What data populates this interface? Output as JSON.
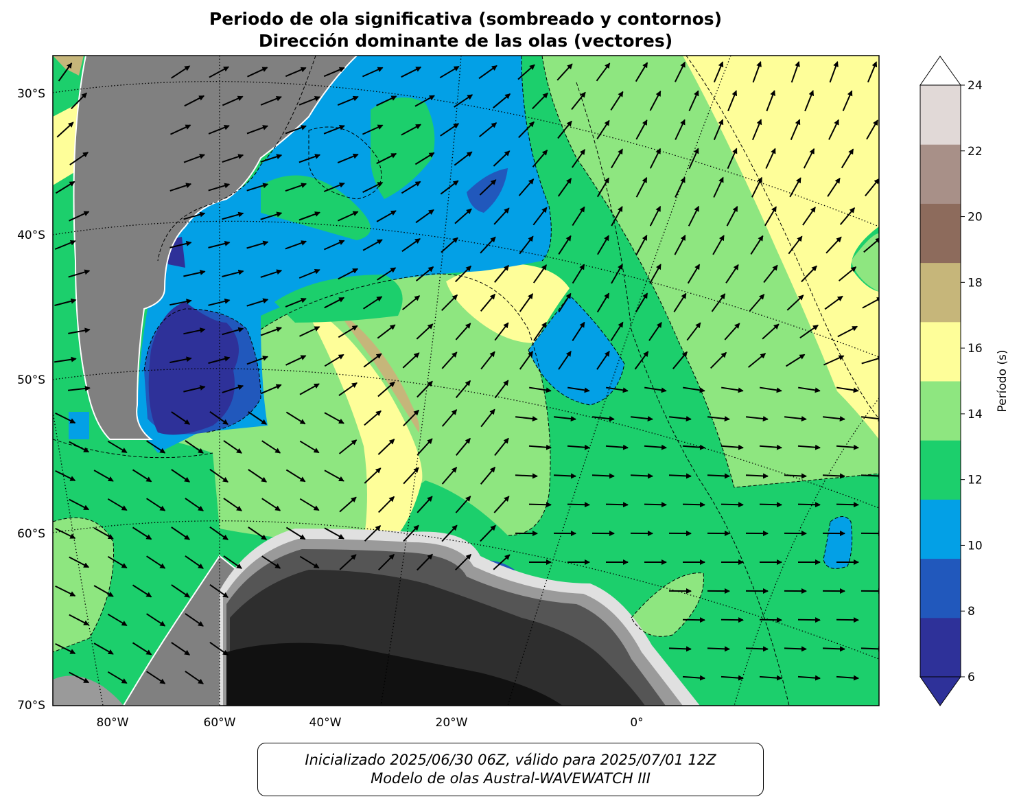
{
  "title": {
    "line1": "Periodo de ola significativa (sombreado y contornos)",
    "line2": "Dirección dominante de las olas (vectores)"
  },
  "map": {
    "lat_labels": [
      "30°S",
      "40°S",
      "50°S",
      "60°S",
      "70°S"
    ],
    "lon_labels": [
      "80°W",
      "60°W",
      "40°W",
      "20°W",
      "0°"
    ],
    "land_color": "#808080",
    "antarctic_ice_colors": [
      "#111111",
      "#2e2e2e",
      "#555555",
      "#9a9a9a",
      "#e0e0e0"
    ]
  },
  "colorbar": {
    "label": "Período (s)",
    "ticks": [
      "6",
      "8",
      "10",
      "12",
      "14",
      "16",
      "18",
      "20",
      "22",
      "24"
    ],
    "colors": [
      "#2e3199",
      "#2158bc",
      "#03a0e6",
      "#1ccf6c",
      "#8ee680",
      "#fefe99",
      "#c6b67a",
      "#8d6b5c",
      "#a89088",
      "#e1d9d7"
    ],
    "extend": "both"
  },
  "footer": {
    "line1": "Inicializado 2025/06/30 06Z, válido para 2025/07/01 12Z",
    "line2": "Modelo de olas Austral-WAVEWATCH III"
  }
}
